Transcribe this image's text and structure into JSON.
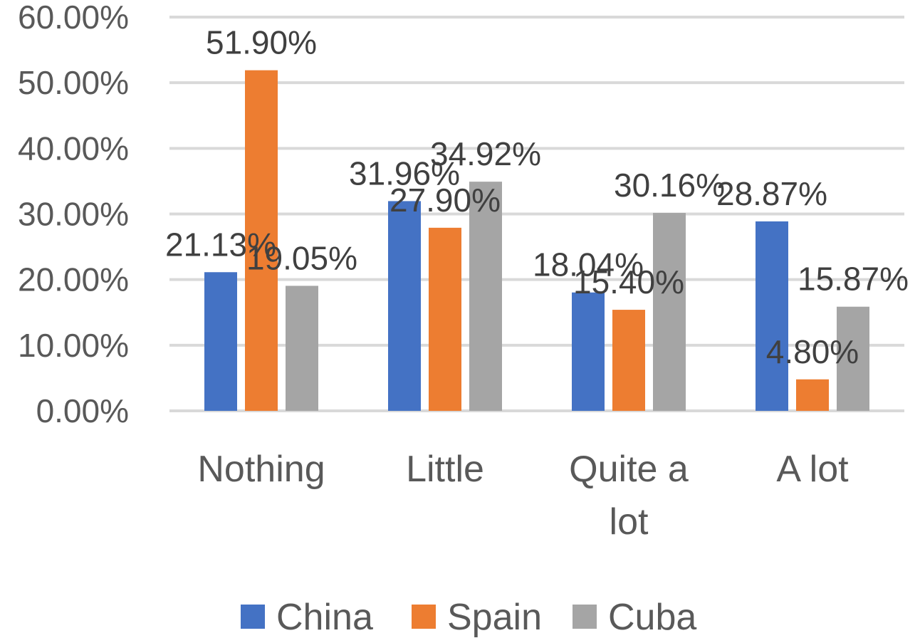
{
  "chart_data": {
    "type": "bar",
    "categories": [
      [
        "Nothing"
      ],
      [
        "Little"
      ],
      [
        "Quite a",
        "lot"
      ],
      [
        "A lot"
      ]
    ],
    "series": [
      {
        "name": "China",
        "color": "#4472C4",
        "values": [
          21.13,
          31.96,
          18.04,
          28.87
        ],
        "labels": [
          "21.13%",
          "31.96%",
          "18.04%",
          "28.87%"
        ]
      },
      {
        "name": "Spain",
        "color": "#ED7D31",
        "values": [
          51.9,
          27.9,
          15.4,
          4.8
        ],
        "labels": [
          "51.90%",
          "27.90%",
          "15.40%",
          "4.80%"
        ]
      },
      {
        "name": "Cuba",
        "color": "#A5A5A5",
        "values": [
          19.05,
          34.92,
          30.16,
          15.87
        ],
        "labels": [
          "19.05%",
          "34.92%",
          "30.16%",
          "15.87%"
        ]
      }
    ],
    "ylim": [
      0,
      60
    ],
    "yticks": [
      "0.00%",
      "10.00%",
      "20.00%",
      "30.00%",
      "40.00%",
      "50.00%",
      "60.00%"
    ],
    "grid": true,
    "legend": "bottom"
  }
}
